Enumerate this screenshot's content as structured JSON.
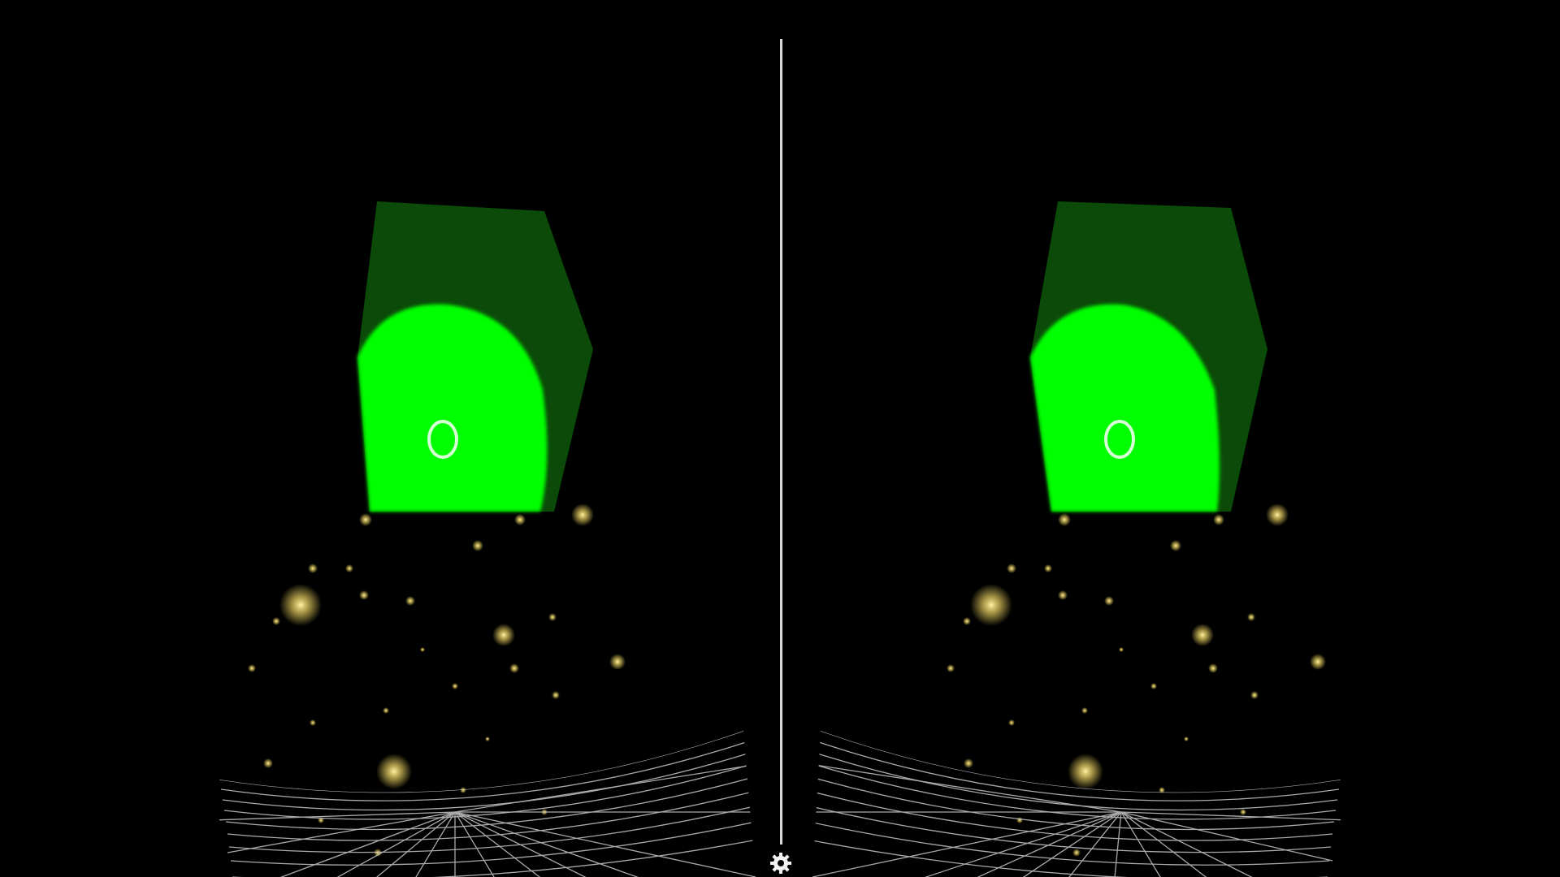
{
  "view_mode": "stereo",
  "scene": {
    "cube_color": "#0b4a08",
    "highlight_color": "#00ff00",
    "reticle_color": "#d6ffd6",
    "particle_color": "#e8d060",
    "floor_grid_color": "#c8c8c8",
    "divider_color": "#d8d8d8",
    "background_color": "#000000"
  },
  "controls": {
    "settings_icon": "gear-icon"
  }
}
